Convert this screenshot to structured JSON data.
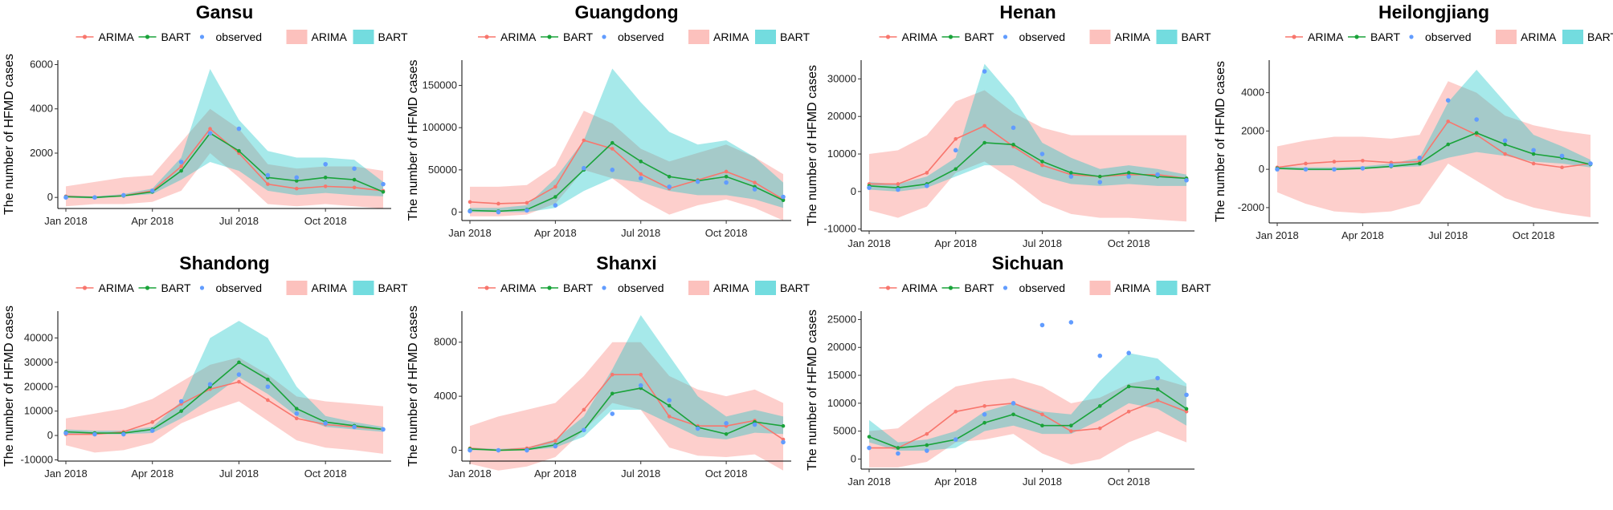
{
  "colors": {
    "arima": "#F8766D",
    "bart": "#1AA33A",
    "observed": "#619CFF",
    "arima_band": "#F8766D",
    "bart_band": "#00BFC4"
  },
  "legend": {
    "arima": "ARIMA",
    "bart": "BART",
    "observed": "observed"
  },
  "ylabel": "The number of HFMD cases",
  "chart_data": [
    {
      "type": "line",
      "title": "Gansu",
      "x_ticks": [
        "Jan 2018",
        "Apr 2018",
        "Jul 2018",
        "Oct 2018"
      ],
      "ylim": [
        -500,
        6200
      ],
      "y_ticks": [
        0,
        2000,
        4000,
        6000
      ],
      "arima": [
        50,
        0,
        80,
        300,
        1400,
        3100,
        2000,
        600,
        400,
        500,
        450,
        300
      ],
      "bart": [
        30,
        0,
        70,
        250,
        1200,
        2900,
        2100,
        900,
        750,
        900,
        800,
        250
      ],
      "observed": [
        0,
        0,
        100,
        300,
        1600,
        2900,
        3100,
        1000,
        900,
        1500,
        1300,
        600
      ],
      "arima_lo": [
        -400,
        -300,
        -300,
        -200,
        300,
        2000,
        900,
        -300,
        -400,
        -300,
        -400,
        -500
      ],
      "arima_hi": [
        500,
        700,
        900,
        1000,
        2500,
        4000,
        3100,
        1500,
        1300,
        1400,
        1400,
        1200
      ],
      "bart_lo": [
        0,
        -50,
        50,
        150,
        800,
        1600,
        1200,
        300,
        100,
        200,
        100,
        50
      ],
      "bart_hi": [
        100,
        50,
        150,
        400,
        1800,
        5800,
        3500,
        2100,
        1800,
        1800,
        1700,
        700
      ]
    },
    {
      "type": "line",
      "title": "Guangdong",
      "x_ticks": [
        "Jan 2018",
        "Apr 2018",
        "Jul 2018",
        "Oct 2018"
      ],
      "ylim": [
        -10000,
        180000
      ],
      "y_ticks": [
        0,
        50000,
        100000,
        150000
      ],
      "arima": [
        12000,
        10000,
        11000,
        30000,
        85000,
        75000,
        45000,
        28000,
        38000,
        48000,
        35000,
        15000
      ],
      "bart": [
        2000,
        1000,
        3000,
        18000,
        50000,
        82000,
        60000,
        42000,
        37000,
        42000,
        30000,
        14000
      ],
      "observed": [
        1000,
        0,
        2000,
        8000,
        52000,
        50000,
        40000,
        30000,
        36000,
        35000,
        27000,
        18000
      ],
      "arima_lo": [
        -5000,
        -5000,
        -3000,
        10000,
        50000,
        40000,
        15000,
        -3000,
        8000,
        15000,
        5000,
        -10000
      ],
      "arima_hi": [
        30000,
        30000,
        32000,
        55000,
        120000,
        105000,
        75000,
        60000,
        70000,
        80000,
        65000,
        45000
      ],
      "bart_lo": [
        0,
        0,
        0,
        5000,
        25000,
        40000,
        35000,
        25000,
        20000,
        20000,
        15000,
        5000
      ],
      "bart_hi": [
        5000,
        5000,
        8000,
        40000,
        85000,
        170000,
        130000,
        95000,
        80000,
        85000,
        65000,
        35000
      ]
    },
    {
      "type": "line",
      "title": "Henan",
      "x_ticks": [
        "Jan 2018",
        "Apr 2018",
        "Jul 2018",
        "Oct 2018"
      ],
      "ylim": [
        -10500,
        35000
      ],
      "y_ticks": [
        -10000,
        0,
        10000,
        20000,
        30000
      ],
      "arima": [
        2000,
        2000,
        5000,
        14000,
        17500,
        12000,
        7000,
        4500,
        4000,
        4500,
        4500,
        3500
      ],
      "bart": [
        1500,
        1000,
        2000,
        6000,
        13000,
        12500,
        8000,
        5000,
        4000,
        5000,
        4000,
        3500
      ],
      "observed": [
        1000,
        500,
        1500,
        11000,
        32000,
        17000,
        10000,
        4000,
        2500,
        4000,
        4500,
        3000
      ],
      "arima_lo": [
        -5000,
        -7000,
        -4000,
        5000,
        8000,
        3000,
        -3000,
        -6000,
        -7000,
        -7000,
        -7500,
        -8000
      ],
      "arima_hi": [
        10000,
        11000,
        15000,
        24000,
        27000,
        21000,
        17000,
        15000,
        15000,
        15000,
        15000,
        15000
      ],
      "bart_lo": [
        500,
        0,
        1000,
        4000,
        7000,
        7000,
        4000,
        2000,
        1500,
        2000,
        1500,
        1500
      ],
      "bart_hi": [
        2500,
        2000,
        4000,
        9000,
        34000,
        25000,
        13000,
        9000,
        6000,
        7000,
        6000,
        4500
      ]
    },
    {
      "type": "line",
      "title": "Heilongjiang",
      "x_ticks": [
        "Jan 2018",
        "Apr 2018",
        "Jul 2018",
        "Oct 2018"
      ],
      "ylim": [
        -2800,
        5700
      ],
      "y_ticks": [
        -2000,
        0,
        2000,
        4000
      ],
      "arima": [
        100,
        300,
        400,
        450,
        350,
        400,
        2500,
        1800,
        800,
        300,
        100,
        300
      ],
      "bart": [
        50,
        0,
        0,
        50,
        150,
        300,
        1300,
        1900,
        1300,
        800,
        600,
        250
      ],
      "observed": [
        0,
        0,
        0,
        50,
        200,
        600,
        3600,
        2600,
        1500,
        1000,
        700,
        300
      ],
      "arima_lo": [
        -1200,
        -1800,
        -2200,
        -2300,
        -2200,
        -1800,
        300,
        -600,
        -1500,
        -2000,
        -2300,
        -2500
      ],
      "arima_hi": [
        1200,
        1500,
        1700,
        1700,
        1600,
        1800,
        4600,
        4000,
        2800,
        2300,
        2000,
        1800
      ],
      "bart_lo": [
        0,
        -50,
        -50,
        0,
        100,
        150,
        600,
        900,
        700,
        400,
        300,
        100
      ],
      "bart_hi": [
        150,
        100,
        100,
        150,
        300,
        600,
        3500,
        5200,
        3500,
        1800,
        1200,
        500
      ]
    },
    {
      "type": "line",
      "title": "Shandong",
      "x_ticks": [
        "Jan 2018",
        "Apr 2018",
        "Jul 2018",
        "Oct 2018"
      ],
      "ylim": [
        -10500,
        51000
      ],
      "y_ticks": [
        -10000,
        0,
        10000,
        20000,
        30000,
        40000
      ],
      "arima": [
        500,
        500,
        1500,
        5500,
        13000,
        19000,
        22000,
        14500,
        7000,
        4500,
        3500,
        2500
      ],
      "bart": [
        1500,
        1000,
        1000,
        2500,
        10000,
        20000,
        30000,
        23000,
        11000,
        5500,
        4000,
        2500
      ],
      "observed": [
        1000,
        500,
        500,
        2000,
        14000,
        21000,
        25000,
        20000,
        9000,
        5000,
        3500,
        2500
      ],
      "arima_lo": [
        -4000,
        -7000,
        -6000,
        -3000,
        5000,
        10000,
        14000,
        6000,
        -2000,
        -5000,
        -6000,
        -7500
      ],
      "arima_hi": [
        7000,
        9000,
        11000,
        15000,
        22000,
        29000,
        32000,
        25000,
        16000,
        14000,
        13000,
        12000
      ],
      "bart_lo": [
        500,
        500,
        500,
        1000,
        7000,
        15000,
        24000,
        17000,
        8000,
        3500,
        2500,
        1500
      ],
      "bart_hi": [
        2500,
        2000,
        2000,
        3500,
        14000,
        40000,
        47000,
        40000,
        20000,
        8000,
        5500,
        3500
      ]
    },
    {
      "type": "line",
      "title": "Shanxi",
      "x_ticks": [
        "Jan 2018",
        "Apr 2018",
        "Jul 2018",
        "Oct 2018"
      ],
      "ylim": [
        -800,
        10300
      ],
      "y_ticks": [
        0,
        4000,
        8000
      ],
      "arima": [
        150,
        0,
        150,
        700,
        3000,
        5600,
        5600,
        2500,
        1800,
        1800,
        2200,
        800
      ],
      "bart": [
        100,
        0,
        50,
        400,
        1500,
        4200,
        4600,
        3300,
        1700,
        1200,
        2100,
        1800
      ],
      "observed": [
        0,
        0,
        0,
        300,
        1500,
        2700,
        4800,
        3700,
        1600,
        2000,
        1900,
        600
      ],
      "arima_lo": [
        -1000,
        -1500,
        -1200,
        -500,
        1500,
        3500,
        3000,
        200,
        -400,
        -500,
        -300,
        -1500
      ],
      "arima_hi": [
        1800,
        2500,
        3000,
        3500,
        5500,
        8000,
        8000,
        5500,
        4500,
        4000,
        4500,
        3500
      ],
      "bart_lo": [
        0,
        0,
        0,
        200,
        1000,
        3000,
        3000,
        2000,
        1000,
        800,
        1300,
        1200
      ],
      "bart_hi": [
        200,
        100,
        200,
        800,
        2500,
        6000,
        10000,
        7000,
        4000,
        2500,
        3000,
        2500
      ]
    },
    {
      "type": "line",
      "title": "Sichuan",
      "x_ticks": [
        "Jan 2018",
        "Apr 2018",
        "Jul 2018",
        "Oct 2018"
      ],
      "ylim": [
        -1800,
        26500
      ],
      "y_ticks": [
        0,
        5000,
        10000,
        15000,
        20000,
        25000
      ],
      "arima": [
        2000,
        2000,
        4500,
        8500,
        9500,
        10000,
        8000,
        5000,
        5500,
        8500,
        10500,
        8500
      ],
      "bart": [
        4000,
        2000,
        2500,
        3500,
        6500,
        8000,
        6000,
        6000,
        9500,
        13000,
        12500,
        9000
      ],
      "observed": [
        2000,
        1000,
        1500,
        3500,
        8000,
        10000,
        24000,
        24500,
        18500,
        19000,
        14500,
        11500
      ],
      "arima_lo": [
        -1500,
        -1500,
        -500,
        3000,
        3500,
        4500,
        1000,
        -1000,
        0,
        3000,
        5000,
        3000
      ],
      "arima_hi": [
        5000,
        5500,
        9500,
        13000,
        14000,
        14500,
        13000,
        10000,
        11000,
        13500,
        14500,
        13000
      ],
      "bart_lo": [
        3000,
        1500,
        1500,
        2000,
        5000,
        6000,
        4500,
        4500,
        7000,
        10000,
        9000,
        6000
      ],
      "bart_hi": [
        7000,
        3000,
        3500,
        5000,
        8500,
        10000,
        8500,
        8000,
        14000,
        19000,
        18000,
        13500
      ]
    }
  ]
}
